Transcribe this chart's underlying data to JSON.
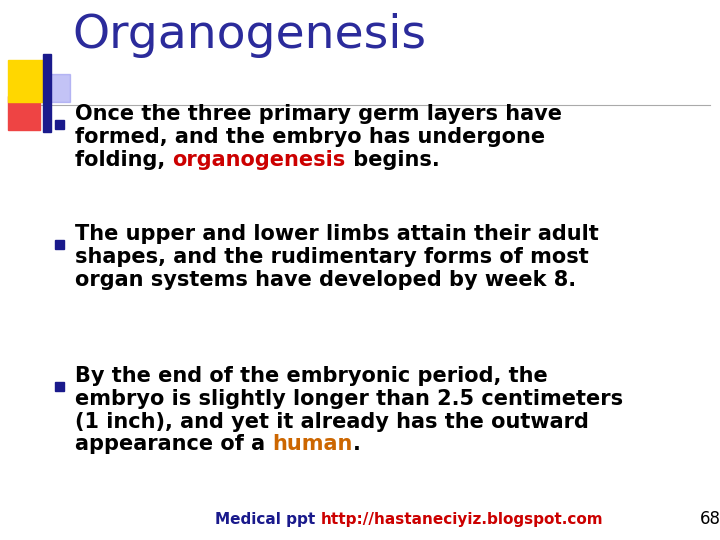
{
  "title": "Organogenesis",
  "title_color": "#2B2B9B",
  "title_fontsize": 34,
  "background_color": "#FFFFFF",
  "bullet_color": "#1A1A8C",
  "text_fontsize": 15,
  "footer_fontsize": 11,
  "footer_text1": "Medical ppt ",
  "footer_text2": "http://hastaneciyiz.blogspot.com",
  "footer_color1": "#1A1A8C",
  "footer_color2": "#CC0000",
  "page_number": "68",
  "decoration_colors": {
    "yellow": "#FFD700",
    "red": "#EE4444",
    "blue_dark": "#1A1A8C",
    "blue_light": "#8888EE"
  },
  "bullet1_lines": [
    "Once the three primary germ layers have",
    "formed, and the embryo has undergone",
    "folding, <<organogenesis>> begins."
  ],
  "bullet2_lines": [
    "The upper and lower limbs attain their adult",
    "shapes, and the rudimentary forms of most",
    "organ systems have developed by week 8."
  ],
  "bullet3_lines": [
    "By the end of the embryonic period, the",
    "embryo is slightly longer than 2.5 centimeters",
    "(1 inch), and yet it already has the outward",
    "appearance of a <<human>>."
  ],
  "highlight1_color": "#CC0000",
  "highlight1_word": "organogenesis",
  "highlight2_color": "#CC6600",
  "highlight2_word": "human"
}
